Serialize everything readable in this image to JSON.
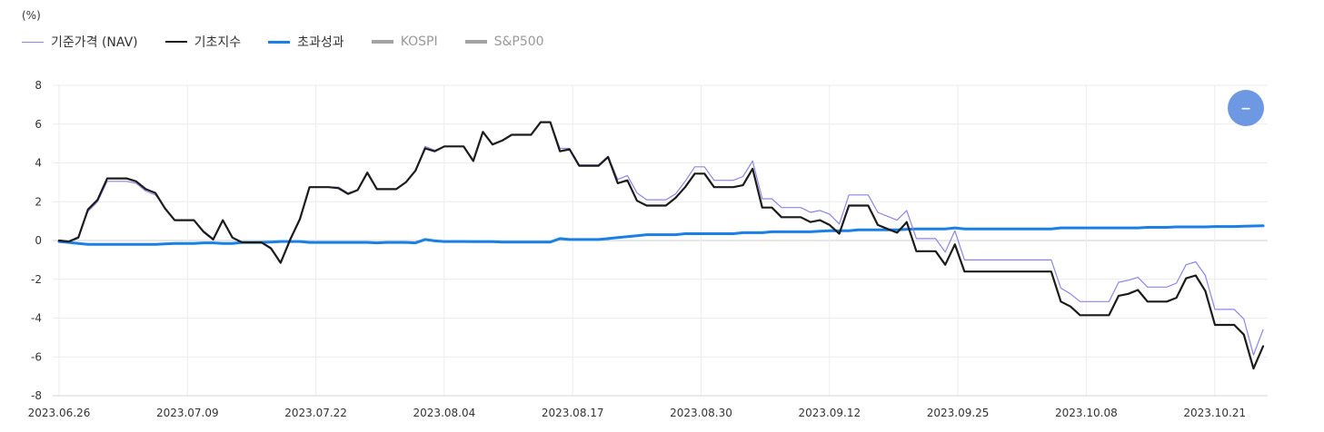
{
  "unit_label": "(%)",
  "zoom_button": {
    "label": "–"
  },
  "colors": {
    "nav": "#8c85e8",
    "benchmark": "#1b1b1b",
    "excess": "#1a7fe6",
    "kospi": "#a3a3a3",
    "sp500": "#a3a3a3"
  },
  "legend": [
    {
      "label": "기준가격 (NAV)",
      "color": "#8c85e8",
      "thickness": 1,
      "active": true
    },
    {
      "label": "기초지수",
      "color": "#1b1b1b",
      "thickness": 2,
      "active": true
    },
    {
      "label": "초과성과",
      "color": "#1a7fe6",
      "thickness": 3,
      "active": true
    },
    {
      "label": "KOSPI",
      "color": "#a3a3a3",
      "thickness": 4,
      "active": false
    },
    {
      "label": "S&P500",
      "color": "#a3a3a3",
      "thickness": 4,
      "active": false
    }
  ],
  "chart_data": {
    "type": "line",
    "y_label": "(%)",
    "ylim": [
      -8,
      8
    ],
    "y_ticks": [
      8,
      6,
      4,
      2,
      0,
      -2,
      -4,
      -6,
      -8
    ],
    "x_tick_labels": [
      "2023.06.26",
      "2023.07.09",
      "2023.07.22",
      "2023.08.04",
      "2023.08.17",
      "2023.08.30",
      "2023.09.12",
      "2023.09.25",
      "2023.10.08",
      "2023.10.21"
    ],
    "grid": true,
    "legend_position": "top-left",
    "series": [
      {
        "name": "기준가격 (NAV)",
        "values": [
          0,
          -0.05,
          0.2,
          1.5,
          2,
          3.05,
          3.05,
          3.05,
          2.95,
          2.55,
          2.35,
          1.7,
          1.05,
          1.05,
          1.05,
          0.5,
          0.1,
          1,
          0.15,
          -0.1,
          -0.1,
          -0.1,
          -0.45,
          -1.1,
          0.1,
          1.15,
          2.75,
          2.75,
          2.75,
          2.75,
          2.45,
          2.6,
          3.45,
          2.65,
          2.65,
          2.65,
          3,
          3.6,
          4.85,
          4.65,
          4.85,
          4.85,
          4.85,
          4.15,
          5.6,
          4.95,
          5.15,
          5.45,
          5.45,
          5.45,
          6.1,
          6.1,
          4.75,
          4.75,
          3.9,
          3.9,
          3.9,
          4.35,
          3.15,
          3.35,
          2.45,
          2.1,
          2.1,
          2.1,
          2.4,
          3.05,
          3.8,
          3.8,
          3.1,
          3.1,
          3.1,
          3.3,
          4.1,
          2.15,
          2.15,
          1.7,
          1.7,
          1.7,
          1.45,
          1.55,
          1.35,
          0.85,
          2.35,
          2.35,
          2.35,
          1.45,
          1.25,
          1.05,
          1.55,
          0.1,
          0.1,
          0.1,
          -0.6,
          0.5,
          -1,
          -1,
          -1,
          -1,
          -1,
          -1,
          -1,
          -1,
          -1,
          -1,
          -2.45,
          -2.75,
          -3.15,
          -3.15,
          -3.15,
          -3.15,
          -2.15,
          -2.05,
          -1.9,
          -2.4,
          -2.4,
          -2.4,
          -2.2,
          -1.25,
          -1.1,
          -1.8,
          -3.55,
          -3.55,
          -3.55,
          -4.05,
          -5.9,
          -4.6
        ]
      },
      {
        "name": "기초지수",
        "values": [
          0,
          -0.05,
          0.15,
          1.6,
          2.1,
          3.2,
          3.2,
          3.2,
          3.05,
          2.65,
          2.45,
          1.65,
          1.05,
          1.05,
          1.05,
          0.45,
          0.05,
          1.05,
          0.15,
          -0.1,
          -0.1,
          -0.1,
          -0.4,
          -1.15,
          0.05,
          1.1,
          2.75,
          2.75,
          2.75,
          2.7,
          2.4,
          2.6,
          3.5,
          2.65,
          2.65,
          2.65,
          3,
          3.6,
          4.75,
          4.6,
          4.85,
          4.85,
          4.85,
          4.1,
          5.6,
          4.95,
          5.15,
          5.45,
          5.45,
          5.45,
          6.1,
          6.1,
          4.6,
          4.7,
          3.85,
          3.85,
          3.85,
          4.3,
          2.95,
          3.1,
          2.05,
          1.8,
          1.8,
          1.8,
          2.2,
          2.75,
          3.45,
          3.45,
          2.75,
          2.75,
          2.75,
          2.85,
          3.7,
          1.7,
          1.7,
          1.2,
          1.2,
          1.2,
          0.95,
          1.05,
          0.8,
          0.35,
          1.8,
          1.8,
          1.8,
          0.8,
          0.6,
          0.4,
          0.95,
          -0.55,
          -0.55,
          -0.55,
          -1.25,
          -0.2,
          -1.6,
          -1.6,
          -1.6,
          -1.6,
          -1.6,
          -1.6,
          -1.6,
          -1.6,
          -1.6,
          -1.6,
          -3.15,
          -3.4,
          -3.85,
          -3.85,
          -3.85,
          -3.85,
          -2.85,
          -2.75,
          -2.55,
          -3.15,
          -3.15,
          -3.15,
          -2.95,
          -1.95,
          -1.8,
          -2.6,
          -4.35,
          -4.35,
          -4.35,
          -4.85,
          -6.6,
          -5.45
        ]
      },
      {
        "name": "초과성과",
        "values": [
          -0.05,
          -0.1,
          -0.15,
          -0.2,
          -0.2,
          -0.2,
          -0.2,
          -0.2,
          -0.2,
          -0.2,
          -0.2,
          -0.18,
          -0.15,
          -0.15,
          -0.15,
          -0.12,
          -0.12,
          -0.15,
          -0.15,
          -0.1,
          -0.1,
          -0.1,
          -0.08,
          -0.05,
          -0.05,
          -0.05,
          -0.1,
          -0.1,
          -0.1,
          -0.1,
          -0.1,
          -0.1,
          -0.1,
          -0.12,
          -0.1,
          -0.1,
          -0.1,
          -0.12,
          0.05,
          -0.02,
          -0.05,
          -0.05,
          -0.05,
          -0.06,
          -0.06,
          -0.06,
          -0.08,
          -0.08,
          -0.08,
          -0.08,
          -0.08,
          -0.08,
          0.1,
          0.05,
          0.05,
          0.05,
          0.05,
          0.1,
          0.15,
          0.2,
          0.25,
          0.3,
          0.3,
          0.3,
          0.3,
          0.35,
          0.35,
          0.35,
          0.35,
          0.35,
          0.35,
          0.4,
          0.4,
          0.4,
          0.45,
          0.45,
          0.45,
          0.45,
          0.45,
          0.48,
          0.5,
          0.5,
          0.5,
          0.55,
          0.55,
          0.55,
          0.55,
          0.55,
          0.58,
          0.6,
          0.6,
          0.6,
          0.6,
          0.65,
          0.6,
          0.6,
          0.6,
          0.6,
          0.6,
          0.6,
          0.6,
          0.6,
          0.6,
          0.6,
          0.65,
          0.65,
          0.65,
          0.65,
          0.65,
          0.65,
          0.65,
          0.65,
          0.65,
          0.68,
          0.68,
          0.68,
          0.7,
          0.7,
          0.7,
          0.7,
          0.72,
          0.72,
          0.72,
          0.74,
          0.75,
          0.76
        ]
      }
    ]
  }
}
